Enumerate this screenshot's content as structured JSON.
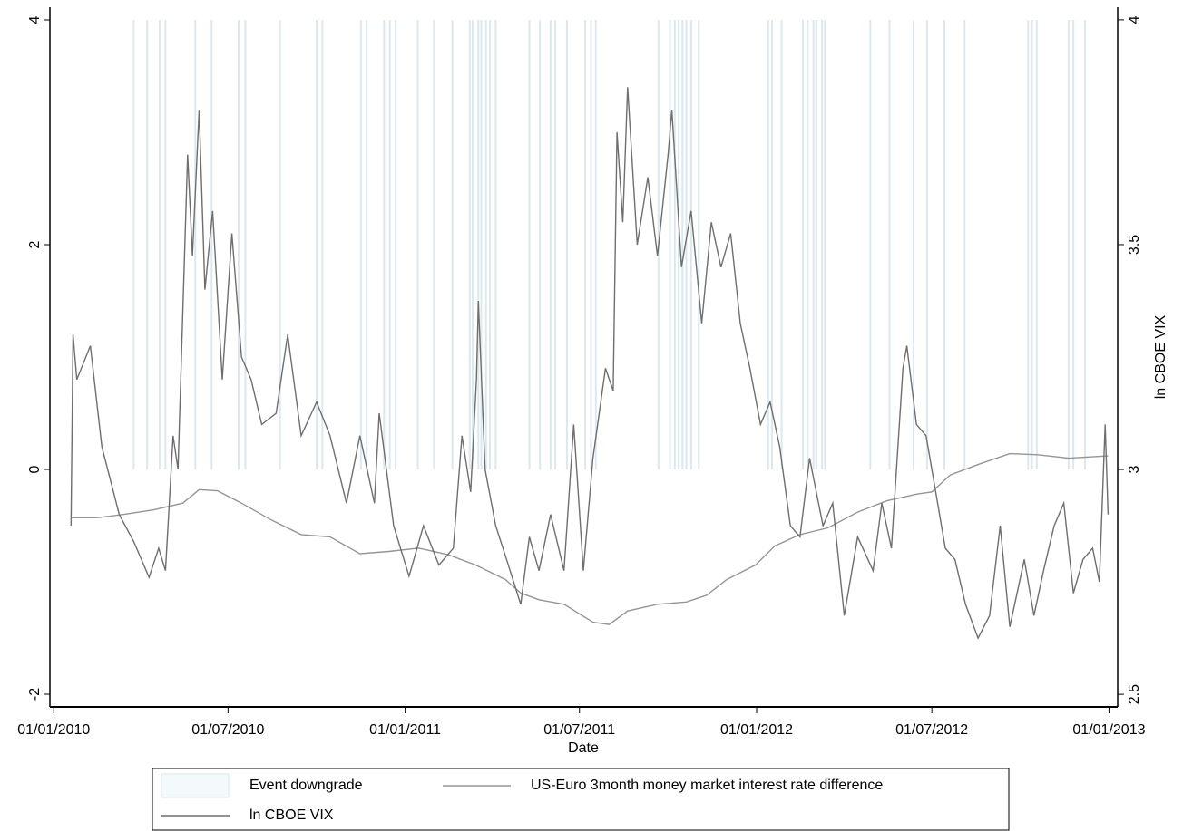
{
  "chart_data": {
    "type": "line",
    "x_label": "Date",
    "y2_label": "ln CBOE VIX",
    "xlim": [
      "2009-12-28",
      "2013-01-10"
    ],
    "xticks": [
      {
        "value": "2010-01-01",
        "label": "01/01/2010"
      },
      {
        "value": "2010-07-01",
        "label": "01/07/2010"
      },
      {
        "value": "2011-01-01",
        "label": "01/01/2011"
      },
      {
        "value": "2011-07-01",
        "label": "01/07/2011"
      },
      {
        "value": "2012-01-01",
        "label": "01/01/2012"
      },
      {
        "value": "2012-07-01",
        "label": "01/07/2012"
      },
      {
        "value": "2013-01-01",
        "label": "01/01/2013"
      }
    ],
    "ylim": [
      -2.113,
      4.113
    ],
    "yticks": [
      -2,
      0,
      2,
      4
    ],
    "y2lim": [
      2.472,
      4.028
    ],
    "y2ticks": [
      2.5,
      3,
      3.5,
      4
    ],
    "series": [
      {
        "name": "Event downgrade",
        "type": "bar",
        "color": "#dbe8ee",
        "x": [
          "2010-03-25",
          "2010-04-08",
          "2010-04-21",
          "2010-04-27",
          "2010-05-28",
          "2010-06-14",
          "2010-07-12",
          "2010-07-19",
          "2010-08-24",
          "2010-10-01",
          "2010-10-07",
          "2010-11-16",
          "2010-11-22",
          "2010-12-10",
          "2010-12-16",
          "2010-12-22",
          "2011-01-14",
          "2011-01-31",
          "2011-02-19",
          "2011-03-09",
          "2011-03-12",
          "2011-03-18",
          "2011-03-21",
          "2011-03-26",
          "2011-03-30",
          "2011-04-05",
          "2011-05-10",
          "2011-05-21",
          "2011-06-01",
          "2011-06-06",
          "2011-06-18",
          "2011-07-07",
          "2011-07-13",
          "2011-07-18",
          "2011-09-21",
          "2011-10-03",
          "2011-10-08",
          "2011-10-12",
          "2011-10-16",
          "2011-10-20",
          "2011-10-25",
          "2011-11-02",
          "2012-01-13",
          "2012-01-17",
          "2012-01-27",
          "2012-02-18",
          "2012-02-23",
          "2012-02-29",
          "2012-03-03",
          "2012-03-09",
          "2012-03-12",
          "2012-04-28",
          "2012-05-18",
          "2012-06-12",
          "2012-06-26",
          "2012-07-14",
          "2012-08-04",
          "2012-10-09",
          "2012-10-13",
          "2012-10-18",
          "2012-11-20",
          "2012-11-25",
          "2012-12-07"
        ],
        "values": [
          4,
          4,
          4,
          4,
          4,
          4,
          4,
          4,
          4,
          4,
          4,
          4,
          4,
          4,
          4,
          4,
          4,
          4,
          4,
          4,
          4,
          4,
          4,
          4,
          4,
          4,
          4,
          4,
          4,
          4,
          4,
          4,
          4,
          4,
          4,
          4,
          4,
          4,
          4,
          4,
          4,
          4,
          4,
          4,
          4,
          4,
          4,
          4,
          4,
          4,
          4,
          4,
          4,
          4,
          4,
          4,
          4,
          4,
          4,
          4,
          4,
          4,
          4
        ]
      },
      {
        "name": "US-Euro 3month money market interest rate difference",
        "type": "line",
        "color": "#959595",
        "x": [
          "2010-01-19",
          "2010-02-15",
          "2010-03-15",
          "2010-04-15",
          "2010-05-15",
          "2010-06-01",
          "2010-06-20",
          "2010-07-15",
          "2010-08-15",
          "2010-09-15",
          "2010-10-15",
          "2010-11-15",
          "2010-12-15",
          "2011-01-15",
          "2011-02-15",
          "2011-03-15",
          "2011-04-15",
          "2011-05-01",
          "2011-05-20",
          "2011-06-15",
          "2011-07-15",
          "2011-08-01",
          "2011-08-20",
          "2011-09-20",
          "2011-10-20",
          "2011-11-10",
          "2011-12-01",
          "2011-12-31",
          "2012-01-20",
          "2012-02-15",
          "2012-03-15",
          "2012-04-15",
          "2012-05-15",
          "2012-06-15",
          "2012-07-01",
          "2012-07-20",
          "2012-08-20",
          "2012-09-20",
          "2012-10-20",
          "2012-11-20",
          "2012-12-31"
        ],
        "values": [
          -0.43,
          -0.43,
          -0.4,
          -0.36,
          -0.3,
          -0.18,
          -0.19,
          -0.3,
          -0.45,
          -0.58,
          -0.6,
          -0.75,
          -0.73,
          -0.7,
          -0.76,
          -0.85,
          -0.98,
          -1.1,
          -1.16,
          -1.2,
          -1.36,
          -1.38,
          -1.26,
          -1.2,
          -1.18,
          -1.12,
          -0.98,
          -0.85,
          -0.68,
          -0.58,
          -0.52,
          -0.38,
          -0.28,
          -0.22,
          -0.2,
          -0.05,
          0.05,
          0.14,
          0.13,
          0.1,
          0.12
        ]
      },
      {
        "name": "ln CBOE VIX",
        "type": "line",
        "axis": "y2",
        "color": "#6e6e6e",
        "x": [
          "2010-01-19",
          "2010-01-21",
          "2010-01-25",
          "2010-02-08",
          "2010-02-20",
          "2010-03-01",
          "2010-03-10",
          "2010-03-25",
          "2010-04-10",
          "2010-04-20",
          "2010-04-27",
          "2010-05-05",
          "2010-05-10",
          "2010-05-20",
          "2010-05-25",
          "2010-06-01",
          "2010-06-07",
          "2010-06-15",
          "2010-06-25",
          "2010-07-05",
          "2010-07-15",
          "2010-07-25",
          "2010-08-05",
          "2010-08-20",
          "2010-09-01",
          "2010-09-15",
          "2010-10-01",
          "2010-10-15",
          "2010-11-01",
          "2010-11-15",
          "2010-11-30",
          "2010-12-05",
          "2010-12-20",
          "2011-01-05",
          "2011-01-20",
          "2011-02-05",
          "2011-02-20",
          "2011-03-01",
          "2011-03-10",
          "2011-03-16",
          "2011-03-18",
          "2011-03-25",
          "2011-04-05",
          "2011-04-20",
          "2011-05-01",
          "2011-05-10",
          "2011-05-20",
          "2011-06-01",
          "2011-06-15",
          "2011-06-25",
          "2011-07-05",
          "2011-07-15",
          "2011-07-28",
          "2011-08-05",
          "2011-08-09",
          "2011-08-15",
          "2011-08-20",
          "2011-08-30",
          "2011-09-10",
          "2011-09-20",
          "2011-10-01",
          "2011-10-05",
          "2011-10-15",
          "2011-10-25",
          "2011-11-05",
          "2011-11-15",
          "2011-11-25",
          "2011-12-05",
          "2011-12-15",
          "2011-12-25",
          "2012-01-05",
          "2012-01-15",
          "2012-01-25",
          "2012-02-05",
          "2012-02-15",
          "2012-02-25",
          "2012-03-10",
          "2012-03-20",
          "2012-04-01",
          "2012-04-15",
          "2012-05-01",
          "2012-05-10",
          "2012-05-20",
          "2012-06-01",
          "2012-06-05",
          "2012-06-15",
          "2012-06-25",
          "2012-07-05",
          "2012-07-15",
          "2012-07-25",
          "2012-08-05",
          "2012-08-18",
          "2012-08-30",
          "2012-09-10",
          "2012-09-20",
          "2012-10-05",
          "2012-10-15",
          "2012-10-25",
          "2012-11-05",
          "2012-11-15",
          "2012-11-25",
          "2012-12-05",
          "2012-12-15",
          "2012-12-22",
          "2012-12-28",
          "2012-12-31"
        ],
        "values": [
          2.875,
          3.3,
          3.2,
          3.275,
          3.05,
          2.975,
          2.9,
          2.84,
          2.76,
          2.825,
          2.775,
          3.075,
          3.0,
          3.7,
          3.475,
          3.8,
          3.4,
          3.575,
          3.2,
          3.525,
          3.25,
          3.2,
          3.1,
          3.125,
          3.3,
          3.075,
          3.15,
          3.075,
          2.925,
          3.075,
          2.925,
          3.125,
          2.875,
          2.7625,
          2.875,
          2.7875,
          2.825,
          3.075,
          2.95,
          3.2,
          3.375,
          3.0,
          2.875,
          2.775,
          2.7,
          2.85,
          2.775,
          2.9,
          2.775,
          3.1,
          2.775,
          3.025,
          3.225,
          3.175,
          3.75,
          3.55,
          3.85,
          3.5,
          3.65,
          3.475,
          3.7,
          3.8,
          3.45,
          3.575,
          3.325,
          3.55,
          3.45,
          3.525,
          3.325,
          3.225,
          3.1,
          3.15,
          3.05,
          2.875,
          2.85,
          3.025,
          2.875,
          2.925,
          2.675,
          2.85,
          2.775,
          2.925,
          2.825,
          3.225,
          3.275,
          3.1,
          3.075,
          2.95,
          2.825,
          2.8,
          2.7,
          2.625,
          2.675,
          2.875,
          2.65,
          2.8,
          2.675,
          2.775,
          2.875,
          2.925,
          2.725,
          2.8,
          2.825,
          2.75,
          3.1,
          2.9
        ]
      }
    ]
  }
}
